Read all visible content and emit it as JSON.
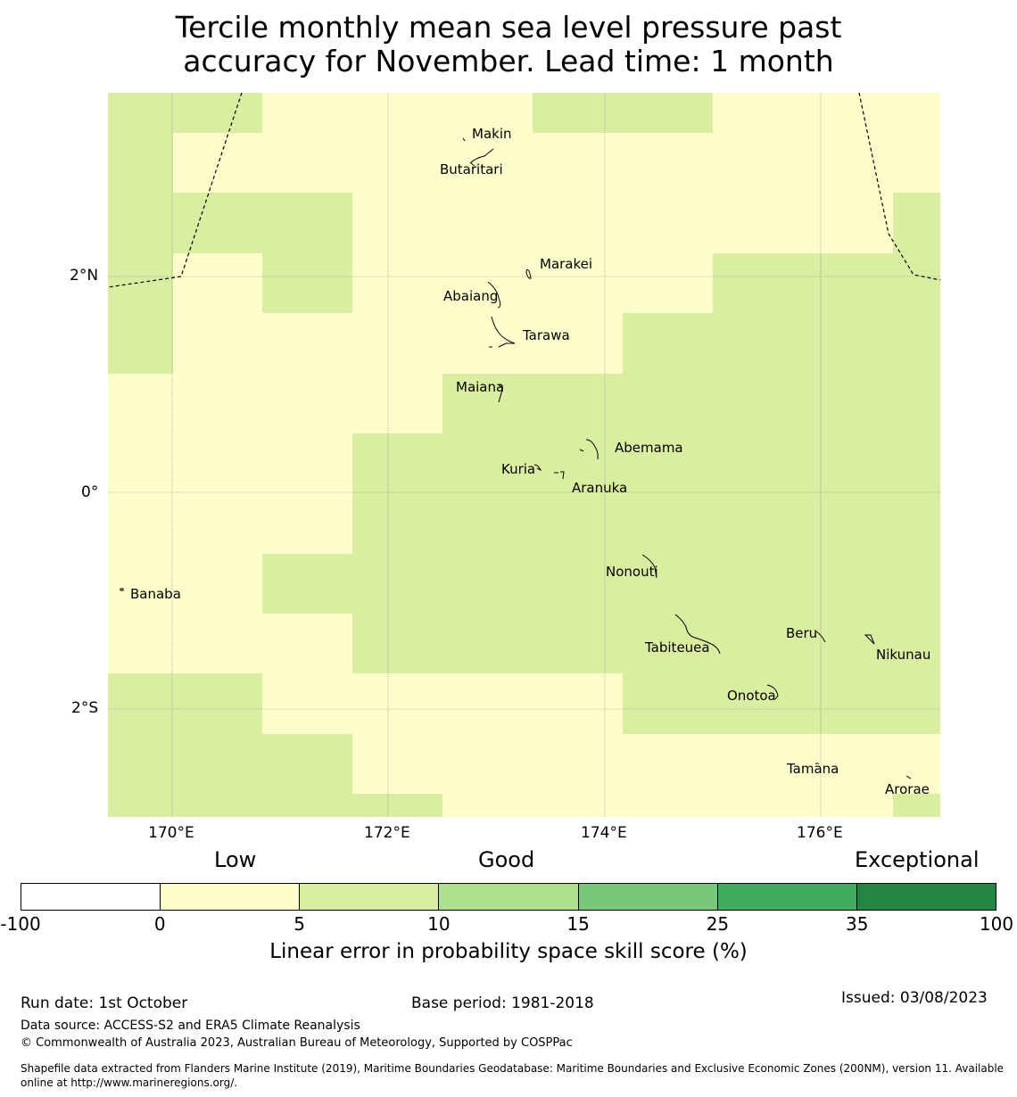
{
  "title": {
    "line1": "Tercile monthly mean sea level pressure past",
    "line2": "accuracy for November. Lead time: 1 month"
  },
  "colors": {
    "low": "#fefecc",
    "good": "#d9eea1",
    "eez_line": "#000000",
    "coast": "#000000"
  },
  "map": {
    "lat_ticks": [
      "2°N",
      "0°",
      "2°S"
    ],
    "lon_ticks": [
      "170°E",
      "172°E",
      "174°E",
      "176°E"
    ],
    "islands": [
      "Makin",
      "Butaritari",
      "Marakei",
      "Abaiang",
      "Tarawa",
      "Maiana",
      "Abemama",
      "Kuria",
      "Aranuka",
      "Nonouti",
      "Banaba",
      "Beru",
      "Tabiteuea",
      "Nikunau",
      "Onotoa",
      "Tamana",
      "Arorae"
    ]
  },
  "legend": {
    "categories": [
      "Low",
      "Good",
      "Exceptional"
    ],
    "bins": [
      {
        "from": -100,
        "to": 0,
        "color": "#ffffff"
      },
      {
        "from": 0,
        "to": 5,
        "color": "#fefecc"
      },
      {
        "from": 5,
        "to": 10,
        "color": "#d9eea1"
      },
      {
        "from": 10,
        "to": 15,
        "color": "#addf8e"
      },
      {
        "from": 15,
        "to": 25,
        "color": "#78c679"
      },
      {
        "from": 25,
        "to": 35,
        "color": "#41ab5d"
      },
      {
        "from": 35,
        "to": 100,
        "color": "#238443"
      }
    ],
    "tick_labels": [
      "-100",
      "0",
      "5",
      "10",
      "15",
      "25",
      "35",
      "100"
    ],
    "label": "Linear error in probability space skill score (%)"
  },
  "footer": {
    "run_date": "Run date: 1st October",
    "base_period": "Base period: 1981-2018",
    "issued": "Issued: 03/08/2023",
    "data_source": "Data source: ACCESS-S2 and ERA5 Climate Reanalysis",
    "copyright": "© Commonwealth of Australia 2023, Australian Bureau of Meteorology, Supported by COSPPac",
    "shapefile": "Shapefile data extracted from Flanders Marine Institute (2019), Maritime Boundaries Geodatabase: Maritime Boundaries and Exclusive Economic Zones (200NM), version 11. Available online at http://www.marineregions.org/."
  }
}
